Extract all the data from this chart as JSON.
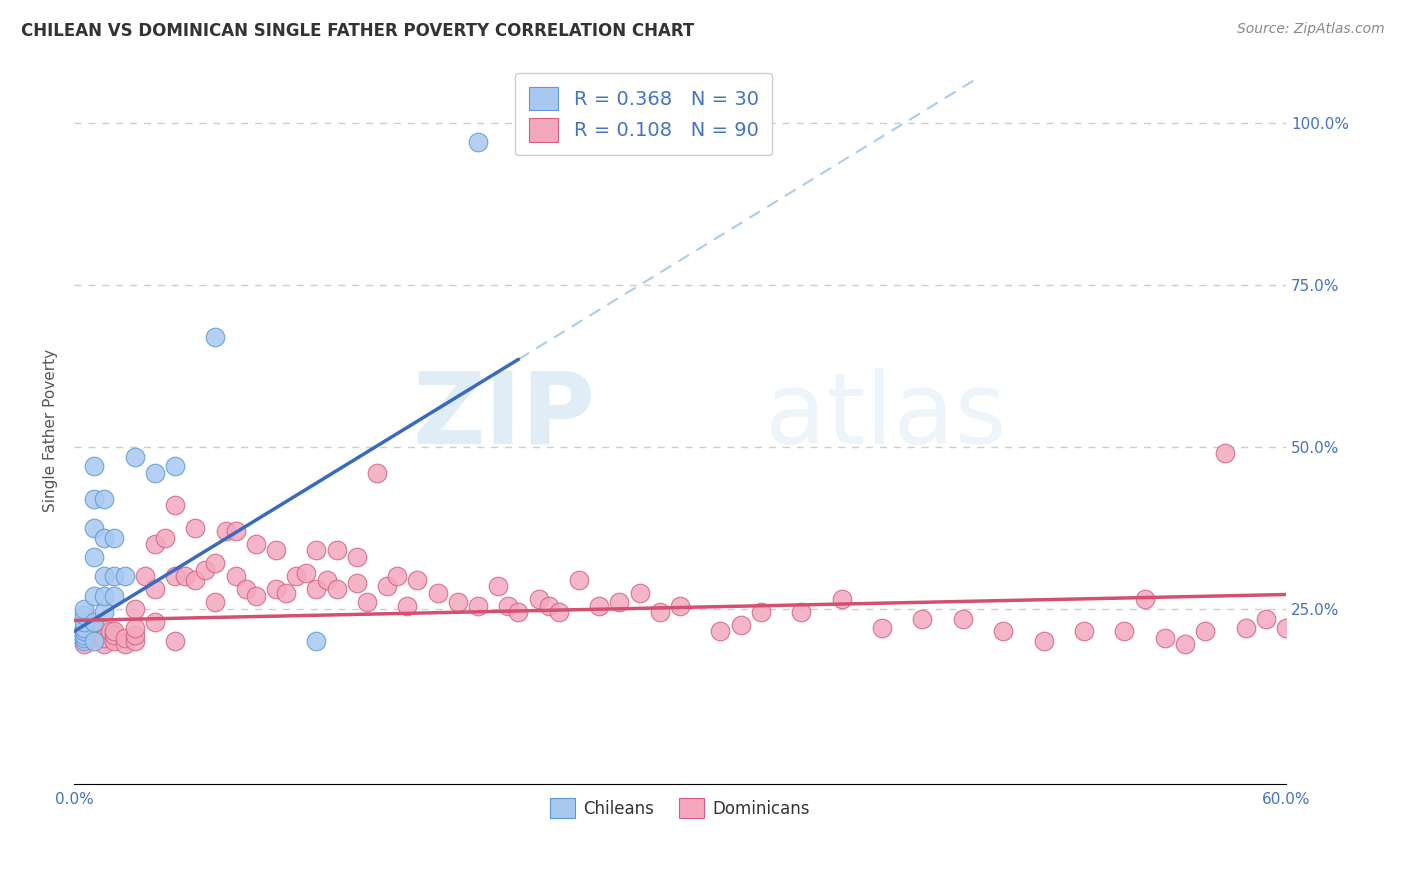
{
  "title": "CHILEAN VS DOMINICAN SINGLE FATHER POVERTY CORRELATION CHART",
  "source": "Source: ZipAtlas.com",
  "ylabel": "Single Father Poverty",
  "xlim": [
    0.0,
    0.6
  ],
  "ylim": [
    -0.02,
    1.07
  ],
  "chilean_color": "#a8c8f0",
  "chilean_edge_color": "#5a9ad4",
  "dominican_color": "#f4a8c0",
  "dominican_edge_color": "#d46080",
  "chilean_line_color": "#3a6abf",
  "dominican_line_color": "#d45070",
  "legend_text_color": "#4472c4",
  "R_chilean": "0.368",
  "N_chilean": "30",
  "R_dominican": "0.108",
  "N_dominican": "90",
  "chilean_line_x0": 0.0,
  "chilean_line_y0": 0.215,
  "chilean_line_x1": 0.22,
  "chilean_line_y1": 0.635,
  "dominican_line_x0": 0.0,
  "dominican_line_y0": 0.232,
  "dominican_line_x1": 0.6,
  "dominican_line_y1": 0.272,
  "chilean_x": [
    0.005,
    0.005,
    0.005,
    0.005,
    0.005,
    0.005,
    0.005,
    0.005,
    0.01,
    0.01,
    0.01,
    0.01,
    0.01,
    0.01,
    0.01,
    0.015,
    0.015,
    0.015,
    0.015,
    0.015,
    0.02,
    0.02,
    0.02,
    0.025,
    0.03,
    0.04,
    0.05,
    0.07,
    0.12,
    0.2
  ],
  "chilean_y": [
    0.2,
    0.205,
    0.21,
    0.215,
    0.22,
    0.23,
    0.24,
    0.25,
    0.2,
    0.23,
    0.27,
    0.33,
    0.375,
    0.42,
    0.47,
    0.245,
    0.27,
    0.3,
    0.36,
    0.42,
    0.27,
    0.3,
    0.36,
    0.3,
    0.485,
    0.46,
    0.47,
    0.67,
    0.2,
    0.97
  ],
  "dominican_x": [
    0.005,
    0.008,
    0.01,
    0.01,
    0.012,
    0.015,
    0.015,
    0.018,
    0.02,
    0.02,
    0.02,
    0.025,
    0.025,
    0.03,
    0.03,
    0.03,
    0.03,
    0.035,
    0.04,
    0.04,
    0.04,
    0.045,
    0.05,
    0.05,
    0.05,
    0.055,
    0.06,
    0.06,
    0.065,
    0.07,
    0.07,
    0.075,
    0.08,
    0.08,
    0.085,
    0.09,
    0.09,
    0.1,
    0.1,
    0.105,
    0.11,
    0.115,
    0.12,
    0.12,
    0.125,
    0.13,
    0.13,
    0.14,
    0.14,
    0.145,
    0.15,
    0.155,
    0.16,
    0.165,
    0.17,
    0.18,
    0.19,
    0.2,
    0.21,
    0.215,
    0.22,
    0.23,
    0.235,
    0.24,
    0.25,
    0.26,
    0.27,
    0.28,
    0.29,
    0.3,
    0.32,
    0.33,
    0.34,
    0.36,
    0.38,
    0.4,
    0.42,
    0.44,
    0.46,
    0.48,
    0.5,
    0.52,
    0.53,
    0.54,
    0.55,
    0.56,
    0.57,
    0.58,
    0.59,
    0.6
  ],
  "dominican_y": [
    0.195,
    0.21,
    0.205,
    0.22,
    0.215,
    0.195,
    0.205,
    0.215,
    0.2,
    0.21,
    0.215,
    0.195,
    0.205,
    0.2,
    0.21,
    0.22,
    0.25,
    0.3,
    0.23,
    0.28,
    0.35,
    0.36,
    0.2,
    0.3,
    0.41,
    0.3,
    0.295,
    0.375,
    0.31,
    0.26,
    0.32,
    0.37,
    0.3,
    0.37,
    0.28,
    0.27,
    0.35,
    0.28,
    0.34,
    0.275,
    0.3,
    0.305,
    0.28,
    0.34,
    0.295,
    0.28,
    0.34,
    0.29,
    0.33,
    0.26,
    0.46,
    0.285,
    0.3,
    0.255,
    0.295,
    0.275,
    0.26,
    0.255,
    0.285,
    0.255,
    0.245,
    0.265,
    0.255,
    0.245,
    0.295,
    0.255,
    0.26,
    0.275,
    0.245,
    0.255,
    0.215,
    0.225,
    0.245,
    0.245,
    0.265,
    0.22,
    0.235,
    0.235,
    0.215,
    0.2,
    0.215,
    0.215,
    0.265,
    0.205,
    0.195,
    0.215,
    0.49,
    0.22,
    0.235,
    0.22
  ],
  "watermark_zip": "ZIP",
  "watermark_atlas": "atlas",
  "background_color": "#ffffff",
  "grid_color": "#cccccc",
  "title_fontsize": 12,
  "source_fontsize": 10,
  "tick_fontsize": 11,
  "ylabel_fontsize": 11
}
